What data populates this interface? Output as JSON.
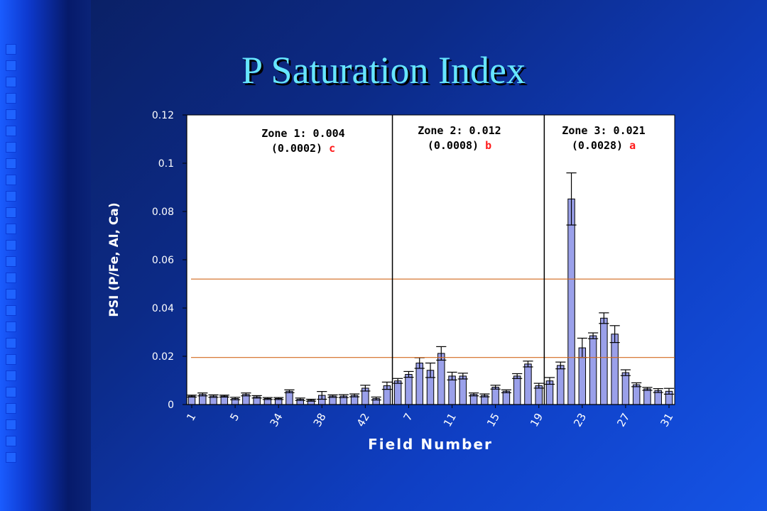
{
  "slide": {
    "title": "P Saturation Index"
  },
  "chart_data": {
    "type": "bar",
    "ylabel": "PSI (P/Fe, Al, Ca)",
    "xlabel": "Field Number",
    "ylim": [
      0,
      0.12
    ],
    "yticks": [
      "0.12",
      "0.1",
      "0.08",
      "0.06",
      "0.04",
      "0.02",
      "0"
    ],
    "xtick_labels": [
      "1",
      "5",
      "34",
      "38",
      "42",
      "7",
      "11",
      "15",
      "19",
      "23",
      "27",
      "31"
    ],
    "xtick_bar_index": [
      0,
      4,
      8,
      12,
      16,
      20,
      24,
      28,
      32,
      36,
      40,
      44
    ],
    "grid": false,
    "reference_lines": [
      0.052,
      0.0195
    ],
    "zone_dividers_after_bar": [
      18.5,
      32.5
    ],
    "zones": [
      {
        "line1": "Zone 1: 0.004",
        "line2": "(0.0002)",
        "letter": "c"
      },
      {
        "line1": "Zone 2: 0.012",
        "line2": "(0.0008)",
        "letter": "b"
      },
      {
        "line1": "Zone 3: 0.021",
        "line2": "(0.0028)",
        "letter": "a"
      }
    ],
    "values": [
      0.0035,
      0.0042,
      0.0035,
      0.0035,
      0.0025,
      0.0042,
      0.0032,
      0.0025,
      0.0025,
      0.0055,
      0.0022,
      0.0018,
      0.0038,
      0.0035,
      0.0035,
      0.0038,
      0.0068,
      0.0025,
      0.0078,
      0.0098,
      0.0125,
      0.0172,
      0.0142,
      0.0212,
      0.0118,
      0.0118,
      0.0042,
      0.0038,
      0.0072,
      0.0055,
      0.0118,
      0.0168,
      0.0078,
      0.0098,
      0.0162,
      0.0852,
      0.0235,
      0.0285,
      0.0358,
      0.0292,
      0.0132,
      0.0082,
      0.0065,
      0.0058,
      0.0055
    ],
    "errors": [
      0.0004,
      0.0006,
      0.0005,
      0.0004,
      0.0005,
      0.0006,
      0.0005,
      0.0004,
      0.0004,
      0.0006,
      0.0005,
      0.0004,
      0.0016,
      0.0005,
      0.0006,
      0.0006,
      0.0012,
      0.0006,
      0.0015,
      0.001,
      0.0012,
      0.0022,
      0.003,
      0.0028,
      0.0016,
      0.0012,
      0.0006,
      0.0006,
      0.0008,
      0.0006,
      0.001,
      0.0012,
      0.001,
      0.0014,
      0.0014,
      0.0108,
      0.004,
      0.0012,
      0.0022,
      0.0035,
      0.0012,
      0.0008,
      0.0006,
      0.0008,
      0.0012
    ]
  }
}
